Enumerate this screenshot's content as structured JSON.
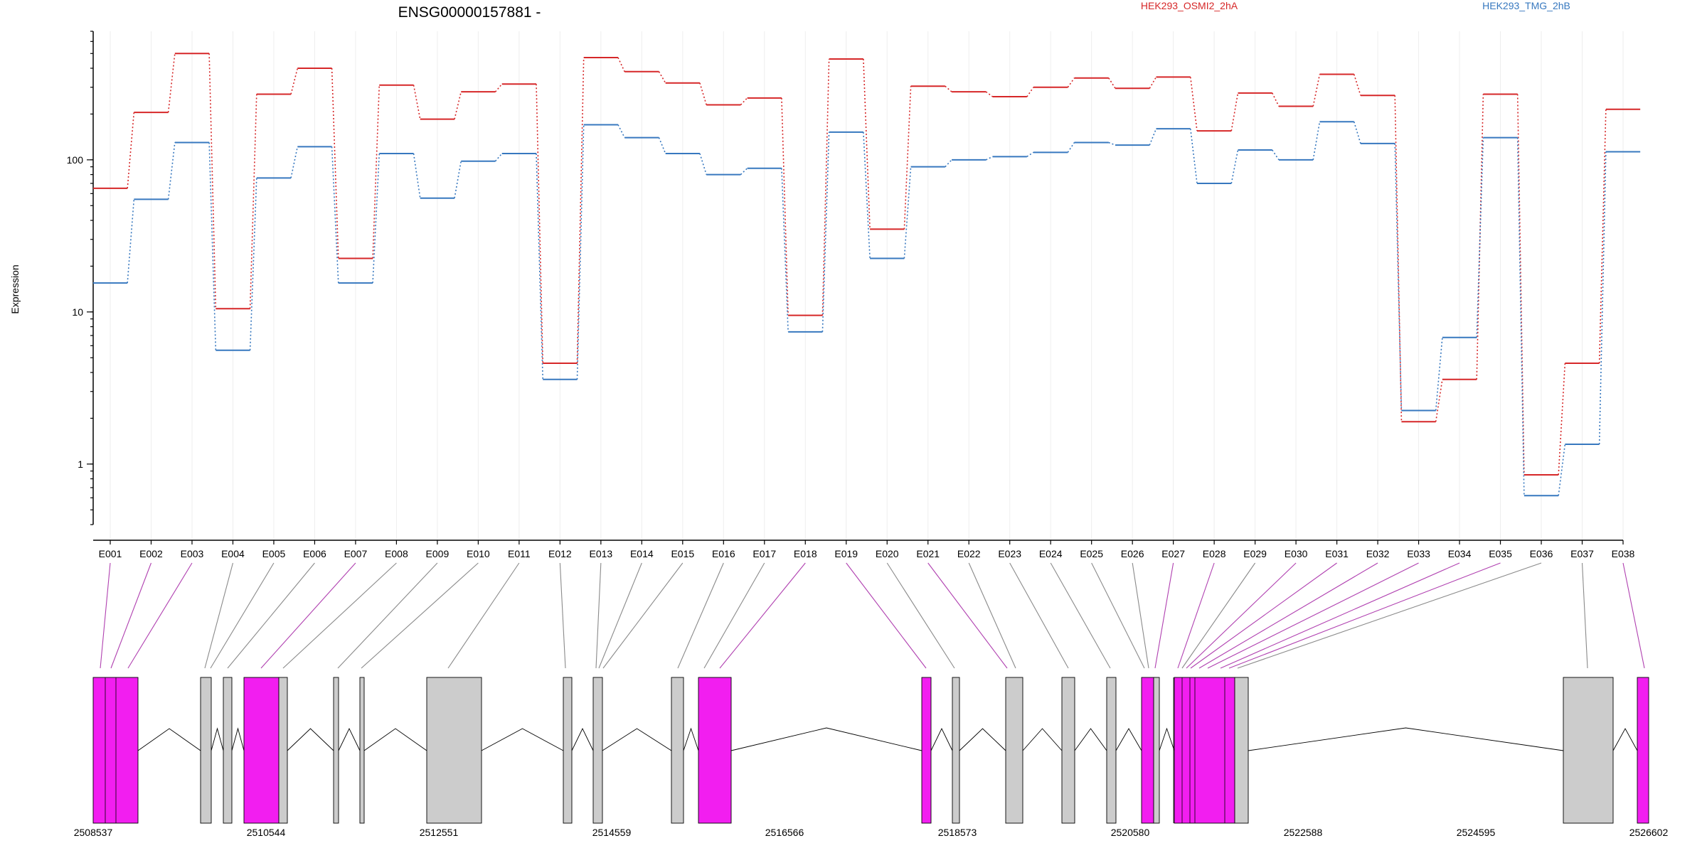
{
  "chart_data": {
    "type": "line",
    "title": "ENSG00000157881 -",
    "ylabel": "Expression",
    "xlabel": "",
    "yscale": "log",
    "ylim": [
      0.4,
      700
    ],
    "y_ticks": [
      1,
      10,
      100
    ],
    "y_tick_labels": [
      "1",
      "10",
      "100"
    ],
    "grid": "vertical",
    "legend_placement": "top",
    "categories": [
      "E001",
      "E002",
      "E003",
      "E004",
      "E005",
      "E006",
      "E007",
      "E008",
      "E009",
      "E010",
      "E011",
      "E012",
      "E013",
      "E014",
      "E015",
      "E016",
      "E017",
      "E018",
      "E019",
      "E020",
      "E021",
      "E022",
      "E023",
      "E024",
      "E025",
      "E026",
      "E027",
      "E028",
      "E029",
      "E030",
      "E031",
      "E032",
      "E033",
      "E034",
      "E035",
      "E036",
      "E037",
      "E038"
    ],
    "series": [
      {
        "name": "HEK293_OSMI2_2hA",
        "color": "#d62728",
        "values": [
          65,
          205,
          500,
          10.5,
          270,
          400,
          22.5,
          310,
          185,
          280,
          315,
          4.6,
          470,
          380,
          320,
          230,
          255,
          9.5,
          460,
          35,
          305,
          280,
          260,
          300,
          345,
          295,
          350,
          155,
          275,
          225,
          365,
          265,
          1.9,
          3.6,
          270,
          0.85,
          4.6,
          215
        ]
      },
      {
        "name": "HEK293_TMG_2hB",
        "color": "#3778bf",
        "values": [
          15.5,
          55,
          130,
          5.6,
          76,
          122,
          15.5,
          110,
          56,
          98,
          110,
          3.6,
          170,
          140,
          110,
          80,
          88,
          7.4,
          152,
          22.5,
          90,
          100,
          105,
          112,
          130,
          125,
          160,
          70,
          116,
          100,
          178,
          128,
          2.25,
          6.8,
          140,
          0.62,
          1.35,
          113
        ]
      }
    ],
    "gene_model": {
      "coordinate_labels": [
        "2508537",
        "2510544",
        "2512551",
        "2514559",
        "2516566",
        "2518573",
        "2520580",
        "2522588",
        "2524595",
        "2526602"
      ],
      "highlight_color": "#f21ef0",
      "exon_color": "#cccccc"
    }
  }
}
